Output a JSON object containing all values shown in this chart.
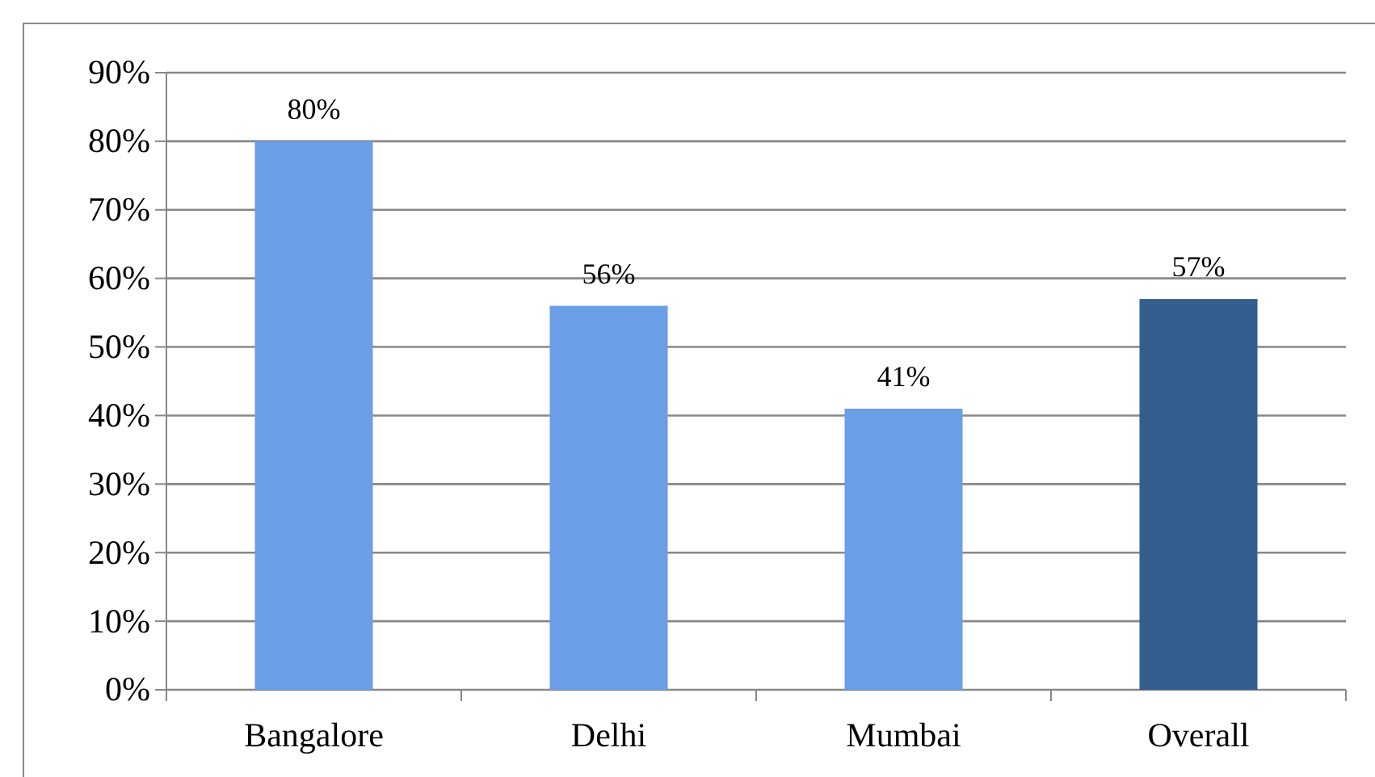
{
  "chart_data": {
    "type": "bar",
    "categories": [
      "Bangalore",
      "Delhi",
      "Mumbai",
      "Overall"
    ],
    "values": [
      80,
      56,
      41,
      57
    ],
    "colors": [
      "#6a9ee6",
      "#6a9ee6",
      "#6a9ee6",
      "#335f8f"
    ],
    "value_labels": [
      "80%",
      "56%",
      "41%",
      "57%"
    ],
    "ylim": [
      0,
      90
    ],
    "yticks": [
      {
        "value": 0,
        "label": "0%"
      },
      {
        "value": 10,
        "label": "10%"
      },
      {
        "value": 20,
        "label": "20%"
      },
      {
        "value": 30,
        "label": "30%"
      },
      {
        "value": 40,
        "label": "40%"
      },
      {
        "value": 50,
        "label": "50%"
      },
      {
        "value": 60,
        "label": "60%"
      },
      {
        "value": 70,
        "label": "70%"
      },
      {
        "value": 80,
        "label": "80%"
      },
      {
        "value": 90,
        "label": "90%"
      }
    ],
    "grid": "y"
  }
}
